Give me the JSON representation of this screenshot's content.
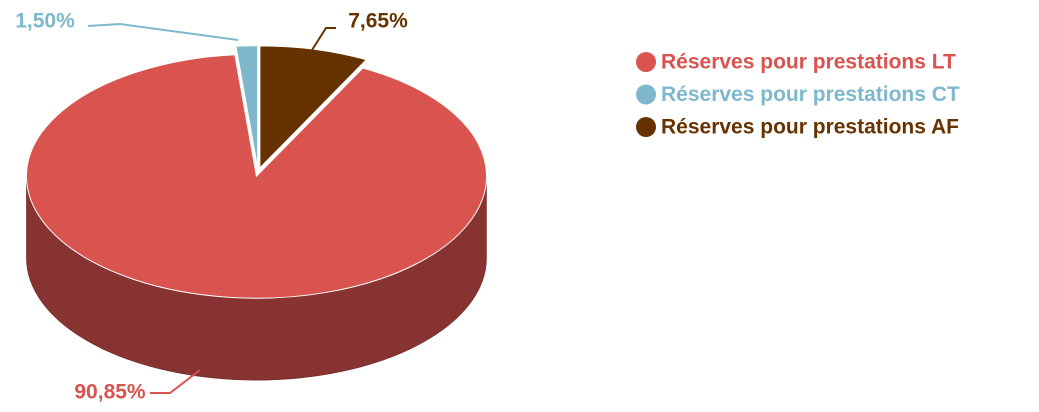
{
  "chart_data": {
    "type": "pie3d",
    "categories": [
      "Réserves pour prestations LT",
      "Réserves pour prestations CT",
      "Réserves pour prestations AF"
    ],
    "values": [
      90.85,
      1.5,
      7.65
    ],
    "value_labels": [
      "90,85%",
      "1,50%",
      "7,65%"
    ],
    "colors": [
      "#d9534f",
      "#7fb8cc",
      "#663300"
    ],
    "legend": "right"
  }
}
